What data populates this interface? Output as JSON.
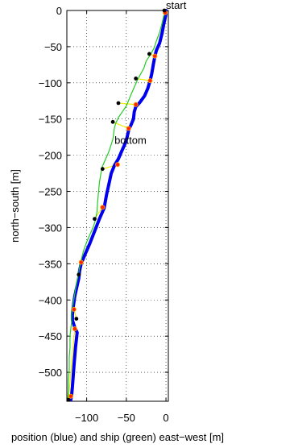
{
  "chart_data": {
    "type": "line",
    "xlabel": "position (blue) and ship (green) east−west [m]",
    "ylabel": "north−south [m]",
    "xlim": [
      -125,
      3
    ],
    "ylim": [
      -540,
      0
    ],
    "x_ticks": [
      {
        "value": -100,
        "label": "−100"
      },
      {
        "value": -50,
        "label": "−50"
      },
      {
        "value": 0,
        "label": "0"
      }
    ],
    "y_ticks": [
      {
        "value": 0,
        "label": "0"
      },
      {
        "value": -50,
        "label": "−50"
      },
      {
        "value": -100,
        "label": "−100"
      },
      {
        "value": -150,
        "label": "−150"
      },
      {
        "value": -200,
        "label": "−200"
      },
      {
        "value": -250,
        "label": "−250"
      },
      {
        "value": -300,
        "label": "−300"
      },
      {
        "value": -350,
        "label": "−350"
      },
      {
        "value": -400,
        "label": "−400"
      },
      {
        "value": -450,
        "label": "−450"
      },
      {
        "value": -500,
        "label": "−500"
      }
    ],
    "grid": true,
    "series": [
      {
        "color": "#0000ee",
        "points": [
          [
            0,
            0
          ],
          [
            0,
            -5
          ],
          [
            -1,
            -10
          ],
          [
            -3,
            -20
          ],
          [
            -5,
            -32
          ],
          [
            -8,
            -45
          ],
          [
            -12,
            -55
          ],
          [
            -14,
            -63
          ],
          [
            -16,
            -75
          ],
          [
            -18,
            -88
          ],
          [
            -20,
            -97
          ],
          [
            -23,
            -108
          ],
          [
            -27,
            -118
          ],
          [
            -33,
            -127
          ],
          [
            -38,
            -133
          ],
          [
            -40,
            -140
          ],
          [
            -41,
            -150
          ],
          [
            -44,
            -158
          ],
          [
            -47,
            -165
          ],
          [
            -49,
            -175
          ],
          [
            -52,
            -185
          ],
          [
            -56,
            -195
          ],
          [
            -60,
            -205
          ],
          [
            -65,
            -214
          ],
          [
            -69,
            -225
          ],
          [
            -72,
            -240
          ],
          [
            -75,
            -255
          ],
          [
            -78,
            -273
          ],
          [
            -84,
            -288
          ],
          [
            -90,
            -305
          ],
          [
            -96,
            -322
          ],
          [
            -102,
            -337
          ],
          [
            -107,
            -350
          ],
          [
            -109,
            -360
          ],
          [
            -110,
            -370
          ],
          [
            -112,
            -380
          ],
          [
            -115,
            -395
          ],
          [
            -117,
            -410
          ],
          [
            -118,
            -420
          ],
          [
            -118,
            -428
          ],
          [
            -115,
            -438
          ],
          [
            -112,
            -445
          ],
          [
            -113,
            -455
          ],
          [
            -114,
            -465
          ],
          [
            -115,
            -478
          ],
          [
            -116,
            -490
          ],
          [
            -117,
            -505
          ],
          [
            -118,
            -520
          ],
          [
            -119,
            -532
          ],
          [
            -120,
            -538
          ]
        ]
      },
      {
        "color": "#22cc22",
        "points": [
          [
            0,
            0
          ],
          [
            -3,
            -8
          ],
          [
            -5,
            -18
          ],
          [
            -8,
            -30
          ],
          [
            -12,
            -42
          ],
          [
            -15,
            -52
          ],
          [
            -19,
            -60
          ],
          [
            -25,
            -70
          ],
          [
            -28,
            -80
          ],
          [
            -32,
            -88
          ],
          [
            -36,
            -96
          ],
          [
            -40,
            -106
          ],
          [
            -44,
            -116
          ],
          [
            -47,
            -124
          ],
          [
            -50,
            -132
          ],
          [
            -55,
            -140
          ],
          [
            -60,
            -148
          ],
          [
            -63,
            -155
          ],
          [
            -65,
            -162
          ],
          [
            -66,
            -170
          ],
          [
            -67,
            -178
          ],
          [
            -69,
            -185
          ],
          [
            -72,
            -195
          ],
          [
            -76,
            -205
          ],
          [
            -80,
            -215
          ],
          [
            -82,
            -225
          ],
          [
            -84,
            -238
          ],
          [
            -85,
            -250
          ],
          [
            -86,
            -262
          ],
          [
            -87,
            -278
          ],
          [
            -89,
            -290
          ],
          [
            -92,
            -300
          ],
          [
            -96,
            -310
          ],
          [
            -100,
            -320
          ],
          [
            -104,
            -332
          ],
          [
            -107,
            -345
          ],
          [
            -109,
            -355
          ],
          [
            -110,
            -362
          ],
          [
            -112,
            -372
          ],
          [
            -114,
            -385
          ],
          [
            -116,
            -398
          ],
          [
            -118,
            -410
          ],
          [
            -119,
            -420
          ],
          [
            -119,
            -430
          ],
          [
            -120,
            -440
          ],
          [
            -121,
            -450
          ],
          [
            -121,
            -465
          ],
          [
            -122,
            -480
          ],
          [
            -122,
            -495
          ],
          [
            -123,
            -510
          ],
          [
            -123,
            -525
          ],
          [
            -124,
            -538
          ]
        ]
      }
    ],
    "red_markers": [
      [
        -1,
        -3
      ],
      [
        -14,
        -63
      ],
      [
        -20,
        -97
      ],
      [
        -38,
        -130
      ],
      [
        -47,
        -163
      ],
      [
        -61,
        -213
      ],
      [
        -80,
        -272
      ],
      [
        -107,
        -348
      ],
      [
        -116,
        -413
      ],
      [
        -115,
        -440
      ],
      [
        -120,
        -533
      ]
    ],
    "black_markers": [
      [
        -2,
        0
      ],
      [
        -21,
        -60
      ],
      [
        -38,
        -94
      ],
      [
        -60,
        -128
      ],
      [
        -67,
        -154
      ],
      [
        -80,
        -219
      ],
      [
        -90,
        -288
      ],
      [
        -110,
        -365
      ],
      [
        -113,
        -426
      ],
      [
        -123,
        -538
      ]
    ],
    "tether_color": "#eeee00",
    "annotations": [
      {
        "text": "start",
        "x": 0,
        "y": 2
      },
      {
        "text": "bottom",
        "x": -65,
        "y": -184
      }
    ]
  }
}
